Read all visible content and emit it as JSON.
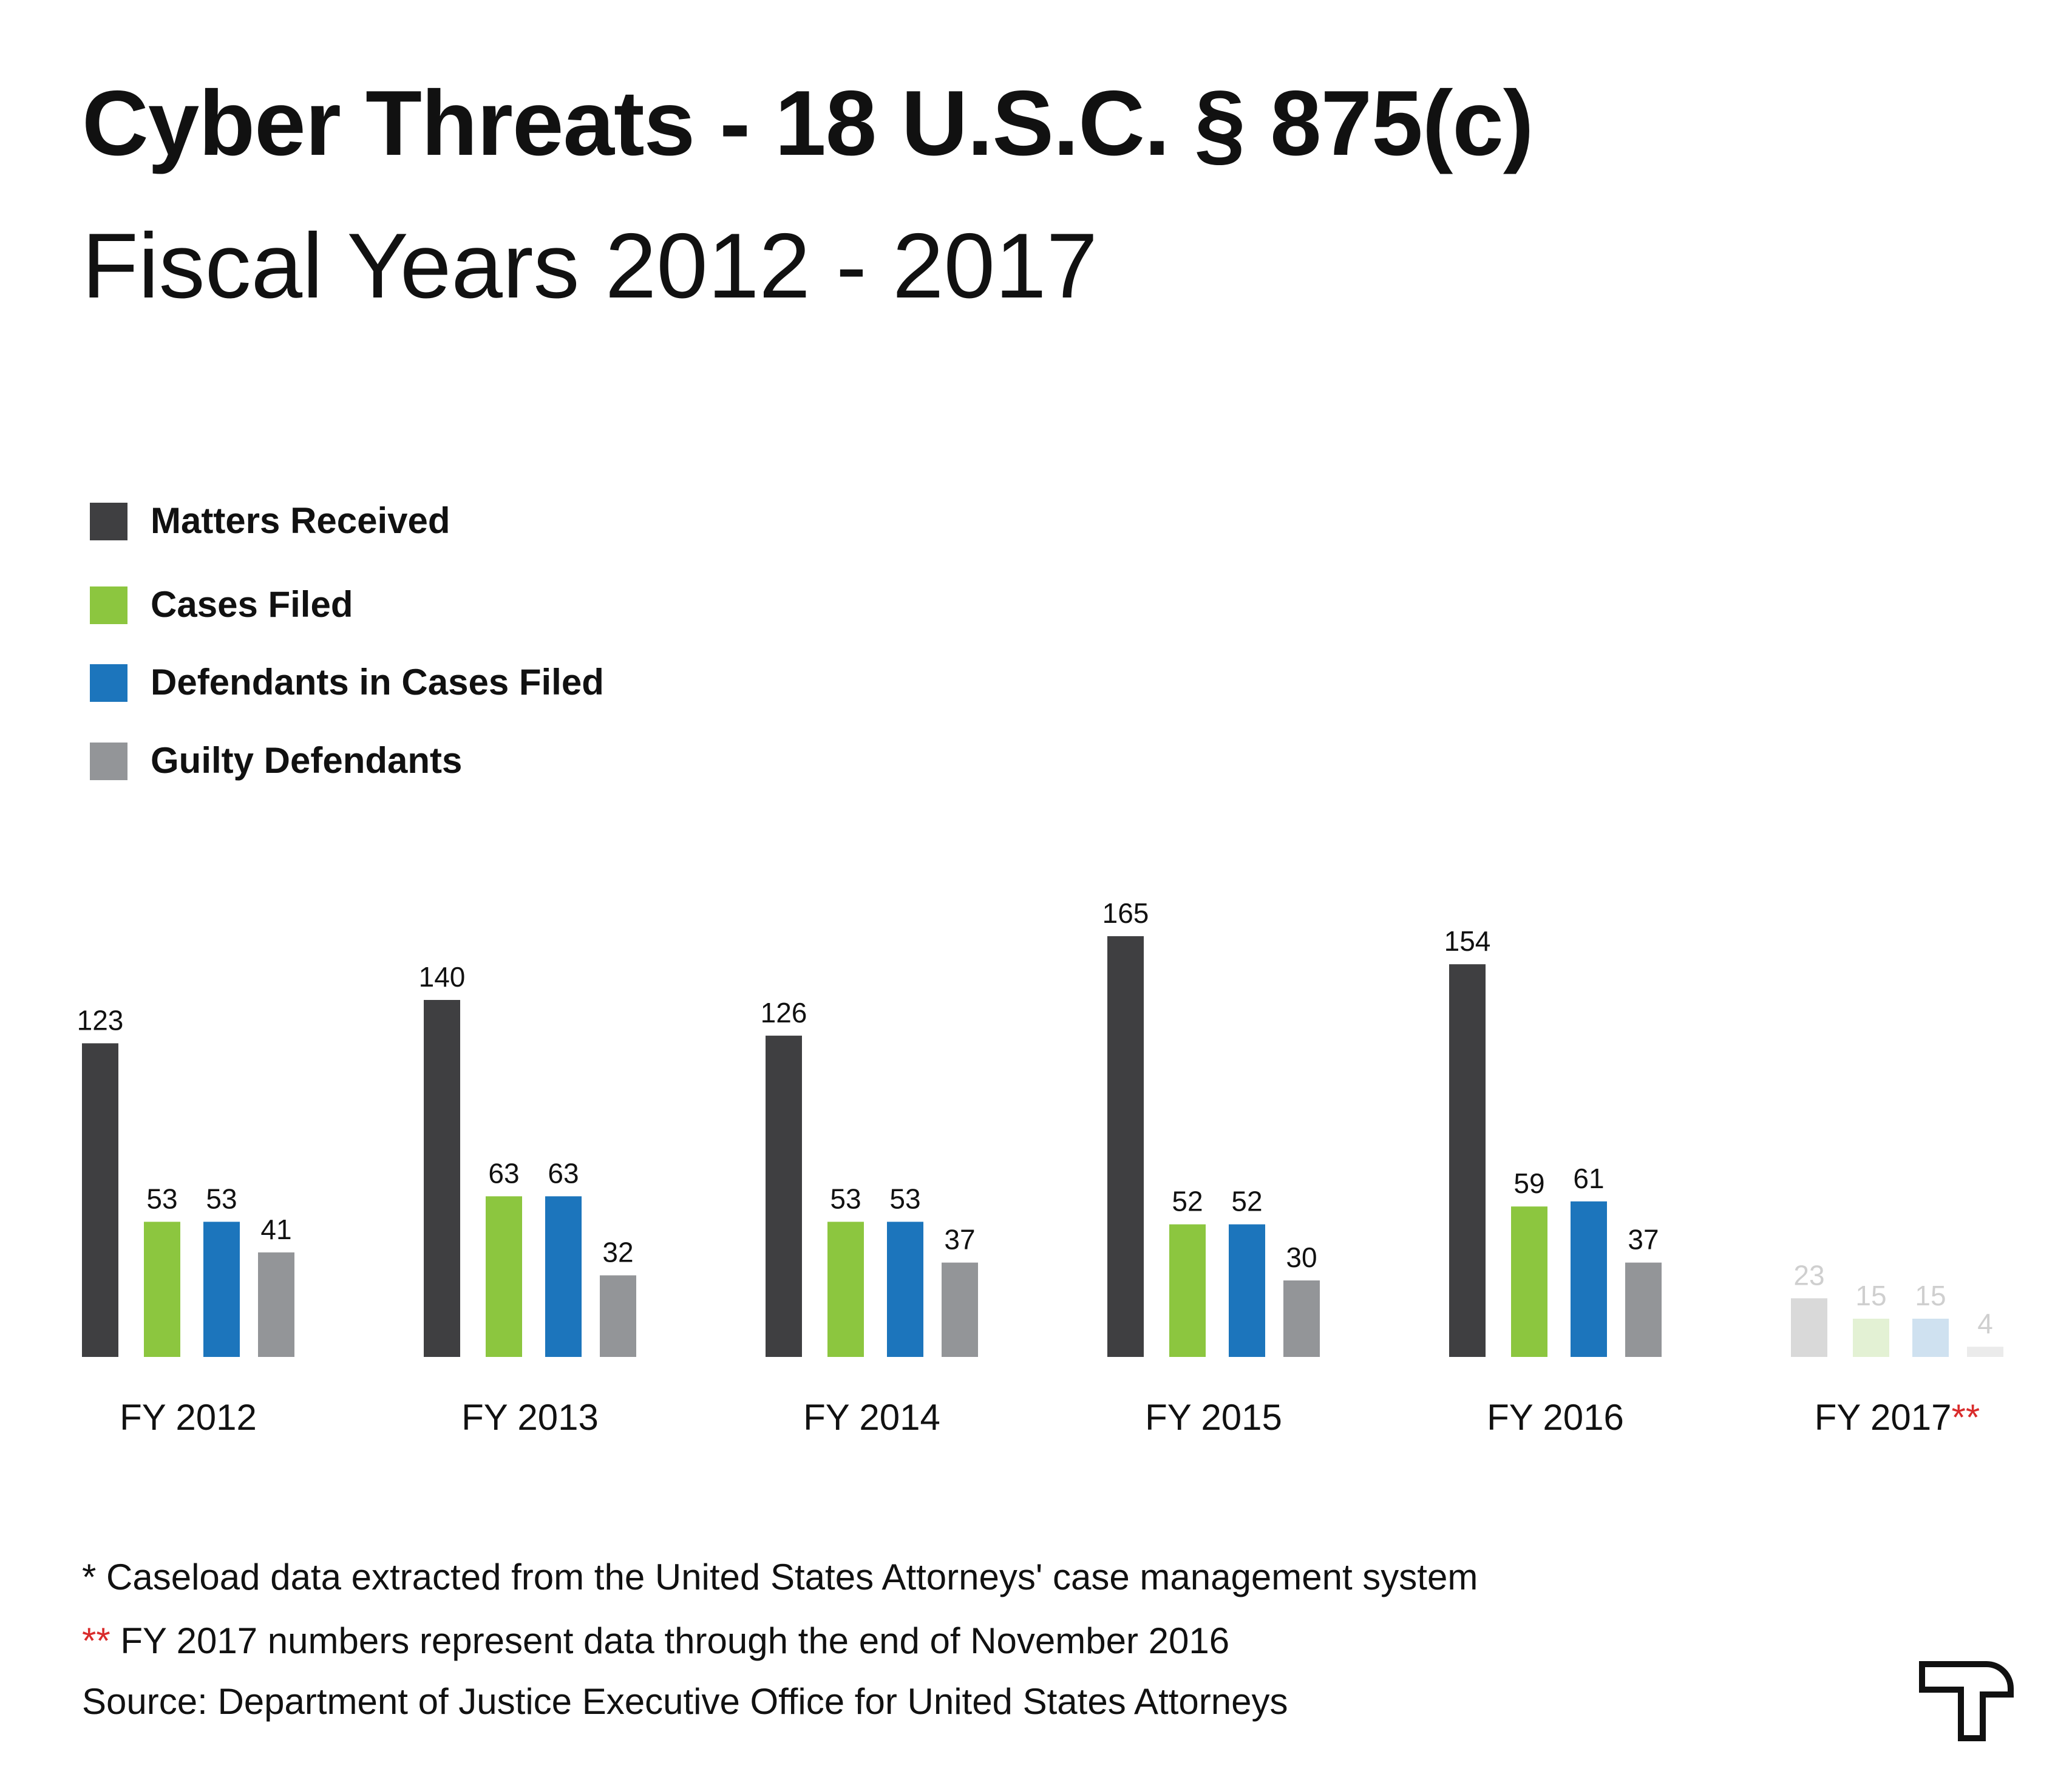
{
  "title": "Cyber Threats - 18 U.S.C. § 875(c)",
  "subtitle": "Fiscal Years 2012 - 2017",
  "legend": {
    "items": [
      {
        "label": "Matters Received",
        "color": "#3f3f41"
      },
      {
        "label": "Cases Filed",
        "color": "#8cc63f"
      },
      {
        "label": "Defendants in Cases Filed",
        "color": "#1c75bc"
      },
      {
        "label": "Guilty Defendants",
        "color": "#939598"
      }
    ]
  },
  "chart_data": {
    "type": "bar",
    "categories": [
      "FY 2012",
      "FY 2013",
      "FY 2014",
      "FY 2015",
      "FY 2016",
      "FY 2017"
    ],
    "category_suffix": {
      "FY 2017": "**"
    },
    "faded_categories": [
      "FY 2017"
    ],
    "series": [
      {
        "name": "Matters Received",
        "values": [
          123,
          140,
          126,
          165,
          154,
          23
        ],
        "color": "#3f3f41",
        "faded_color": "#d9d9d9"
      },
      {
        "name": "Cases Filed",
        "values": [
          53,
          63,
          53,
          52,
          59,
          15
        ],
        "color": "#8cc63f",
        "faded_color": "#e3f1d4"
      },
      {
        "name": "Defendants in Cases Filed",
        "values": [
          53,
          63,
          53,
          52,
          61,
          15
        ],
        "color": "#1c75bc",
        "faded_color": "#cfe1f0"
      },
      {
        "name": "Guilty Defendants",
        "values": [
          41,
          32,
          37,
          30,
          37,
          4
        ],
        "color": "#939598",
        "faded_color": "#ebebeb"
      }
    ],
    "ylim": [
      0,
      165
    ],
    "grid": false,
    "legend_position": "top-left"
  },
  "footnotes": {
    "note1": "* Caseload data extracted from the United States Attorneys'  case management system",
    "note2_marker": "**",
    "note2": " FY 2017 numbers represent data through the end of November 2016",
    "source": "Source: Department of Justice Executive Office for United States Attorneys"
  },
  "logo": {
    "icon": "t-logo-icon"
  }
}
